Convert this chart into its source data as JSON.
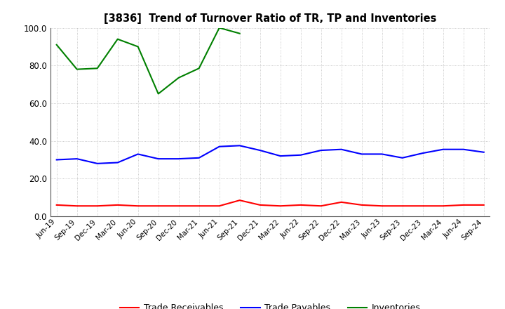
{
  "title": "[3836]  Trend of Turnover Ratio of TR, TP and Inventories",
  "x_labels": [
    "Jun-19",
    "Sep-19",
    "Dec-19",
    "Mar-20",
    "Jun-20",
    "Sep-20",
    "Dec-20",
    "Mar-21",
    "Jun-21",
    "Sep-21",
    "Dec-21",
    "Mar-22",
    "Jun-22",
    "Sep-22",
    "Dec-22",
    "Mar-23",
    "Jun-23",
    "Sep-23",
    "Dec-23",
    "Mar-24",
    "Jun-24",
    "Sep-24"
  ],
  "trade_receivables": [
    6.0,
    5.5,
    5.5,
    6.0,
    5.5,
    5.5,
    5.5,
    5.5,
    5.5,
    8.5,
    6.0,
    5.5,
    6.0,
    5.5,
    7.5,
    6.0,
    5.5,
    5.5,
    5.5,
    5.5,
    6.0,
    6.0
  ],
  "trade_payables": [
    30.0,
    30.5,
    28.0,
    28.5,
    33.0,
    30.5,
    30.5,
    31.0,
    37.0,
    37.5,
    35.0,
    32.0,
    32.5,
    35.0,
    35.5,
    33.0,
    33.0,
    31.0,
    33.5,
    35.5,
    35.5,
    34.0
  ],
  "inventories": [
    91.0,
    78.0,
    78.5,
    94.0,
    90.0,
    65.0,
    73.5,
    78.5,
    100.0,
    97.0,
    null,
    null,
    null,
    null,
    null,
    null,
    null,
    null,
    null,
    null,
    null,
    null
  ],
  "ylim": [
    0.0,
    100.0
  ],
  "yticks": [
    0.0,
    20.0,
    40.0,
    60.0,
    80.0,
    100.0
  ],
  "color_tr": "#ff0000",
  "color_tp": "#0000ff",
  "color_inv": "#008000",
  "legend_labels": [
    "Trade Receivables",
    "Trade Payables",
    "Inventories"
  ],
  "bg_color": "#ffffff",
  "grid_color": "#bbbbbb"
}
